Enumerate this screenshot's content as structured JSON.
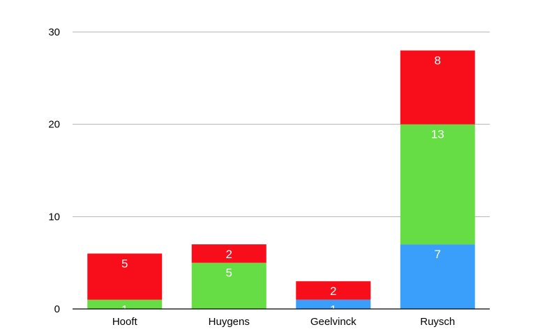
{
  "chart_data": {
    "type": "bar",
    "stacked": true,
    "title": "",
    "xlabel": "",
    "ylabel": "",
    "categories": [
      "Hooft",
      "Huygens",
      "Geelvinck",
      "Ruysch"
    ],
    "series": [
      {
        "color": "#3a9ffb",
        "values": [
          0,
          0,
          1,
          7
        ],
        "labels": [
          "",
          "",
          "1",
          "7"
        ]
      },
      {
        "color": "#66dd44",
        "values": [
          1,
          5,
          0,
          13
        ],
        "labels": [
          "1",
          "5",
          "",
          "13"
        ]
      },
      {
        "color": "#f80d1b",
        "values": [
          5,
          2,
          2,
          8
        ],
        "labels": [
          "5",
          "2",
          "2",
          "8"
        ]
      }
    ],
    "ylim": [
      0,
      30
    ],
    "yticks": [
      0,
      10,
      20,
      30
    ],
    "grid": true,
    "legend": "none"
  }
}
